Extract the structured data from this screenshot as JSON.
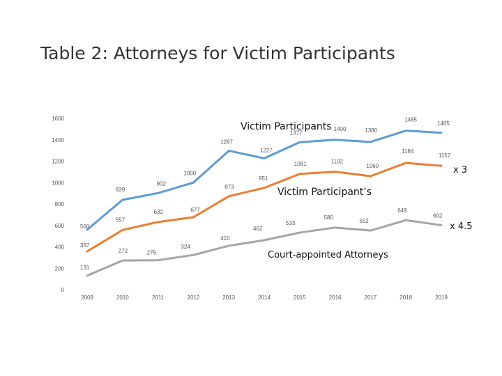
{
  "slide": {
    "title": "Table 2: Attorneys for Victim Participants"
  },
  "chart_data": {
    "type": "line",
    "title": "",
    "xlabel": "",
    "ylabel": "",
    "ylim": [
      0,
      1600
    ],
    "yticks": [
      0,
      200,
      400,
      600,
      800,
      1000,
      1200,
      1400,
      1600
    ],
    "categories": [
      "2009",
      "2010",
      "2011",
      "2012",
      "2013",
      "2014",
      "2015",
      "2016",
      "2017",
      "2018",
      "2019"
    ],
    "grid": false,
    "legend": "none",
    "series": [
      {
        "color": "#5b9bd5",
        "values": [
          560,
          839,
          902,
          1000,
          1297,
          1227,
          1377,
          1400,
          1380,
          1485,
          1465
        ]
      },
      {
        "color": "#ed7d31",
        "values": [
          357,
          557,
          632,
          677,
          873,
          951,
          1081,
          1102,
          1060,
          1184,
          1157
        ]
      },
      {
        "color": "#a5a5a5",
        "values": [
          131,
          272,
          275,
          324,
          410,
          462,
          533,
          580,
          552,
          649,
          602
        ]
      }
    ],
    "annotations": [
      {
        "text": "Victim Participants",
        "size": 14
      },
      {
        "text": "Victim Participant’s",
        "size": 14
      },
      {
        "text": "Court-appointed Attorneys",
        "size": 13
      },
      {
        "text": "x 3",
        "size": 13
      },
      {
        "text": "x 4.5",
        "size": 13
      }
    ]
  }
}
